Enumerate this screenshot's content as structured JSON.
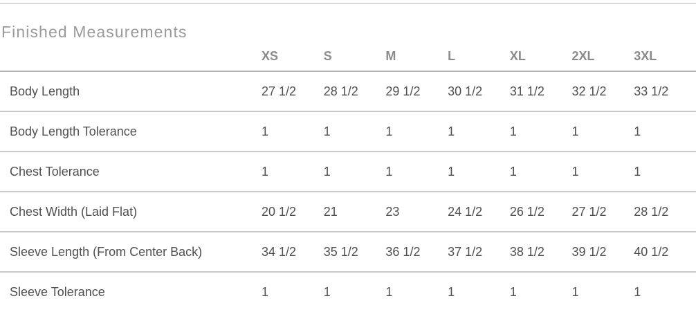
{
  "section": {
    "title": "Finished Measurements"
  },
  "table": {
    "columns": [
      "XS",
      "S",
      "M",
      "L",
      "XL",
      "2XL",
      "3XL"
    ],
    "rows": [
      {
        "label": "Body Length",
        "values": [
          "27 1/2",
          "28 1/2",
          "29 1/2",
          "30 1/2",
          "31 1/2",
          "32 1/2",
          "33 1/2"
        ]
      },
      {
        "label": "Body Length Tolerance",
        "values": [
          "1",
          "1",
          "1",
          "1",
          "1",
          "1",
          "1"
        ]
      },
      {
        "label": "Chest Tolerance",
        "values": [
          "1",
          "1",
          "1",
          "1",
          "1",
          "1",
          "1"
        ]
      },
      {
        "label": "Chest Width (Laid Flat)",
        "values": [
          "20 1/2",
          "21",
          "23",
          "24 1/2",
          "26 1/2",
          "27 1/2",
          "28 1/2"
        ]
      },
      {
        "label": "Sleeve Length (From Center Back)",
        "values": [
          "34 1/2",
          "35 1/2",
          "36 1/2",
          "37 1/2",
          "38 1/2",
          "39 1/2",
          "40 1/2"
        ]
      },
      {
        "label": "Sleeve Tolerance",
        "values": [
          "1",
          "1",
          "1",
          "1",
          "1",
          "1",
          "1"
        ]
      }
    ],
    "colors": {
      "title_text": "#9a9a9a",
      "header_text": "#8a8a8a",
      "cell_text": "#4f4f4f",
      "top_rule": "#d9d9d9",
      "header_rule": "#b3b3b3",
      "row_rule": "#c9c9c9"
    }
  }
}
